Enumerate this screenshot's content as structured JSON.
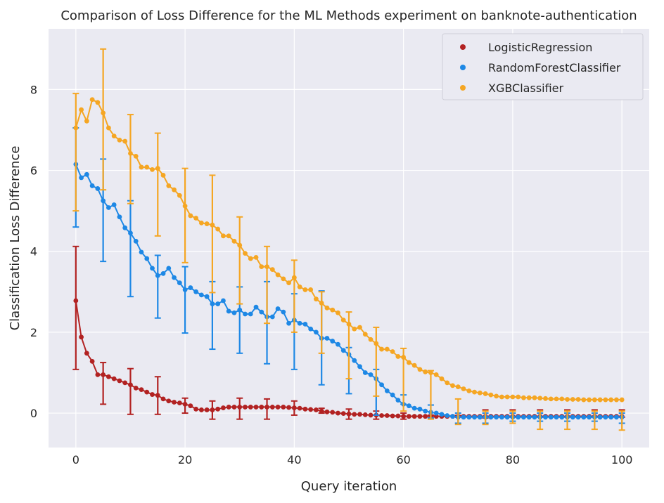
{
  "chart_data": {
    "type": "line",
    "title": "Comparison of Loss Difference for the ML Methods experiment on banknote-authentication",
    "xlabel": "Query iteration",
    "ylabel": "Classification Loss Difference",
    "xlim": [
      -5,
      105
    ],
    "ylim": [
      -0.85,
      9.5
    ],
    "xticks": [
      0,
      20,
      40,
      60,
      80,
      100
    ],
    "yticks": [
      0,
      2,
      4,
      6,
      8
    ],
    "grid": true,
    "legend_position": "top-right",
    "background": "#eaeaf2",
    "series": [
      {
        "name": "LogisticRegression",
        "color": "#b22222",
        "values": [
          2.78,
          1.88,
          1.48,
          1.28,
          0.95,
          0.95,
          0.9,
          0.85,
          0.8,
          0.75,
          0.7,
          0.62,
          0.58,
          0.52,
          0.46,
          0.44,
          0.35,
          0.3,
          0.27,
          0.25,
          0.22,
          0.18,
          0.1,
          0.08,
          0.08,
          0.08,
          0.1,
          0.13,
          0.15,
          0.15,
          0.15,
          0.15,
          0.15,
          0.15,
          0.15,
          0.15,
          0.15,
          0.15,
          0.15,
          0.14,
          0.13,
          0.12,
          0.1,
          0.09,
          0.08,
          0.05,
          0.03,
          0.02,
          0.0,
          -0.01,
          -0.02,
          -0.03,
          -0.03,
          -0.04,
          -0.05,
          -0.05,
          -0.06,
          -0.06,
          -0.07,
          -0.07,
          -0.08,
          -0.08,
          -0.08,
          -0.08,
          -0.08,
          -0.08,
          -0.08,
          -0.08,
          -0.08,
          -0.08,
          -0.08,
          -0.08,
          -0.08,
          -0.08,
          -0.08,
          -0.08,
          -0.08,
          -0.08,
          -0.08,
          -0.08,
          -0.08,
          -0.08,
          -0.08,
          -0.08,
          -0.08,
          -0.08,
          -0.08,
          -0.08,
          -0.08,
          -0.08,
          -0.08,
          -0.08,
          -0.08,
          -0.08,
          -0.08,
          -0.08,
          -0.08,
          -0.08,
          -0.08,
          -0.08,
          -0.08
        ],
        "errorbars": [
          {
            "x": 0,
            "y": 2.78,
            "low": 1.08,
            "high": 4.12
          },
          {
            "x": 5,
            "y": 0.95,
            "low": 0.22,
            "high": 1.25
          },
          {
            "x": 10,
            "y": 0.7,
            "low": -0.03,
            "high": 1.1
          },
          {
            "x": 15,
            "y": 0.44,
            "low": -0.03,
            "high": 0.9
          },
          {
            "x": 20,
            "y": 0.22,
            "low": 0.0,
            "high": 0.37
          },
          {
            "x": 25,
            "y": 0.08,
            "low": -0.15,
            "high": 0.3
          },
          {
            "x": 30,
            "y": 0.15,
            "low": -0.15,
            "high": 0.37
          },
          {
            "x": 35,
            "y": 0.15,
            "low": -0.15,
            "high": 0.35
          },
          {
            "x": 40,
            "y": 0.13,
            "low": -0.05,
            "high": 0.3
          },
          {
            "x": 45,
            "y": 0.05,
            "low": 0.0,
            "high": 0.12
          },
          {
            "x": 50,
            "y": -0.02,
            "low": -0.15,
            "high": 0.1
          },
          {
            "x": 55,
            "y": -0.05,
            "low": -0.15,
            "high": 0.05
          },
          {
            "x": 60,
            "y": -0.08,
            "low": -0.15,
            "high": 0.0
          },
          {
            "x": 65,
            "y": -0.08,
            "low": -0.12,
            "high": -0.05
          },
          {
            "x": 70,
            "y": -0.08,
            "low": -0.1,
            "high": -0.06
          },
          {
            "x": 75,
            "y": -0.08,
            "low": -0.12,
            "high": 0.08
          },
          {
            "x": 80,
            "y": -0.08,
            "low": -0.1,
            "high": 0.08
          },
          {
            "x": 85,
            "y": -0.08,
            "low": -0.1,
            "high": 0.08
          },
          {
            "x": 90,
            "y": -0.08,
            "low": -0.1,
            "high": 0.08
          },
          {
            "x": 95,
            "y": -0.08,
            "low": -0.1,
            "high": 0.08
          },
          {
            "x": 100,
            "y": -0.08,
            "low": -0.1,
            "high": 0.08
          }
        ]
      },
      {
        "name": "RandomForestClassifier",
        "color": "#1e88e5",
        "values": [
          6.15,
          5.82,
          5.9,
          5.62,
          5.55,
          5.25,
          5.08,
          5.15,
          4.85,
          4.58,
          4.45,
          4.25,
          3.98,
          3.82,
          3.58,
          3.4,
          3.45,
          3.58,
          3.35,
          3.22,
          3.05,
          3.1,
          3.0,
          2.92,
          2.88,
          2.7,
          2.7,
          2.78,
          2.52,
          2.48,
          2.55,
          2.45,
          2.45,
          2.62,
          2.5,
          2.38,
          2.38,
          2.58,
          2.5,
          2.22,
          2.3,
          2.22,
          2.2,
          2.08,
          2.0,
          1.85,
          1.85,
          1.78,
          1.7,
          1.55,
          1.45,
          1.3,
          1.15,
          1.0,
          0.95,
          0.85,
          0.7,
          0.55,
          0.45,
          0.32,
          0.22,
          0.18,
          0.12,
          0.1,
          0.05,
          0.02,
          0.0,
          -0.03,
          -0.06,
          -0.08,
          -0.1,
          -0.1,
          -0.1,
          -0.1,
          -0.1,
          -0.1,
          -0.1,
          -0.1,
          -0.1,
          -0.1,
          -0.1,
          -0.1,
          -0.1,
          -0.1,
          -0.1,
          -0.1,
          -0.1,
          -0.1,
          -0.1,
          -0.1,
          -0.1,
          -0.1,
          -0.1,
          -0.1,
          -0.1,
          -0.1,
          -0.1,
          -0.1,
          -0.1,
          -0.1,
          -0.1
        ],
        "errorbars": [
          {
            "x": 0,
            "y": 6.15,
            "low": 4.6,
            "high": 7.05
          },
          {
            "x": 5,
            "y": 5.25,
            "low": 3.75,
            "high": 6.28
          },
          {
            "x": 10,
            "y": 4.45,
            "low": 2.88,
            "high": 5.25
          },
          {
            "x": 15,
            "y": 3.4,
            "low": 2.35,
            "high": 3.9
          },
          {
            "x": 20,
            "y": 3.05,
            "low": 1.98,
            "high": 3.62
          },
          {
            "x": 25,
            "y": 2.7,
            "low": 1.58,
            "high": 3.25
          },
          {
            "x": 30,
            "y": 2.55,
            "low": 1.48,
            "high": 3.12
          },
          {
            "x": 35,
            "y": 2.38,
            "low": 1.22,
            "high": 3.25
          },
          {
            "x": 40,
            "y": 2.3,
            "low": 1.08,
            "high": 2.95
          },
          {
            "x": 45,
            "y": 1.85,
            "low": 0.7,
            "high": 3.02
          },
          {
            "x": 50,
            "y": 1.45,
            "low": 0.48,
            "high": 1.62
          },
          {
            "x": 55,
            "y": 0.85,
            "low": -0.05,
            "high": 1.08
          },
          {
            "x": 60,
            "y": 0.32,
            "low": 0.22,
            "high": 0.45
          },
          {
            "x": 65,
            "y": 0.05,
            "low": -0.12,
            "high": 0.2
          },
          {
            "x": 70,
            "y": -0.1,
            "low": -0.25,
            "high": 0.0
          },
          {
            "x": 75,
            "y": -0.1,
            "low": -0.25,
            "high": 0.0
          },
          {
            "x": 80,
            "y": -0.1,
            "low": -0.2,
            "high": 0.0
          },
          {
            "x": 85,
            "y": -0.1,
            "low": -0.2,
            "high": 0.0
          },
          {
            "x": 90,
            "y": -0.1,
            "low": -0.2,
            "high": 0.0
          },
          {
            "x": 95,
            "y": -0.1,
            "low": -0.2,
            "high": 0.0
          },
          {
            "x": 100,
            "y": -0.1,
            "low": -0.25,
            "high": 0.0
          }
        ]
      },
      {
        "name": "XGBClassifier",
        "color": "#f5a623",
        "values": [
          7.05,
          7.5,
          7.22,
          7.75,
          7.68,
          7.42,
          7.05,
          6.85,
          6.75,
          6.72,
          6.42,
          6.35,
          6.08,
          6.08,
          6.02,
          6.05,
          5.88,
          5.62,
          5.52,
          5.38,
          5.12,
          4.88,
          4.82,
          4.7,
          4.68,
          4.65,
          4.55,
          4.38,
          4.38,
          4.25,
          4.15,
          3.95,
          3.82,
          3.85,
          3.62,
          3.62,
          3.55,
          3.42,
          3.32,
          3.22,
          3.35,
          3.12,
          3.05,
          3.05,
          2.82,
          2.72,
          2.6,
          2.55,
          2.48,
          2.3,
          2.2,
          2.08,
          2.12,
          1.95,
          1.82,
          1.72,
          1.58,
          1.58,
          1.52,
          1.4,
          1.38,
          1.25,
          1.18,
          1.08,
          1.02,
          1.0,
          0.95,
          0.85,
          0.75,
          0.68,
          0.65,
          0.6,
          0.55,
          0.52,
          0.5,
          0.48,
          0.45,
          0.42,
          0.4,
          0.4,
          0.4,
          0.4,
          0.38,
          0.38,
          0.38,
          0.37,
          0.36,
          0.35,
          0.35,
          0.35,
          0.34,
          0.34,
          0.34,
          0.33,
          0.33,
          0.33,
          0.33,
          0.33,
          0.33,
          0.33,
          0.33
        ],
        "errorbars": [
          {
            "x": 0,
            "y": 7.05,
            "low": 5.0,
            "high": 7.9
          },
          {
            "x": 5,
            "y": 7.42,
            "low": 5.52,
            "high": 9.0
          },
          {
            "x": 10,
            "y": 6.42,
            "low": 5.18,
            "high": 7.38
          },
          {
            "x": 15,
            "y": 6.05,
            "low": 4.38,
            "high": 6.92
          },
          {
            "x": 20,
            "y": 5.12,
            "low": 3.72,
            "high": 6.05
          },
          {
            "x": 25,
            "y": 4.65,
            "low": 2.98,
            "high": 5.88
          },
          {
            "x": 30,
            "y": 4.15,
            "low": 2.7,
            "high": 4.85
          },
          {
            "x": 35,
            "y": 3.62,
            "low": 2.22,
            "high": 4.12
          },
          {
            "x": 40,
            "y": 3.35,
            "low": 2.0,
            "high": 3.78
          },
          {
            "x": 45,
            "y": 2.72,
            "low": 1.48,
            "high": 3.0
          },
          {
            "x": 50,
            "y": 2.2,
            "low": 0.85,
            "high": 2.5
          },
          {
            "x": 55,
            "y": 1.72,
            "low": 0.42,
            "high": 2.12
          },
          {
            "x": 60,
            "y": 1.38,
            "low": 0.05,
            "high": 1.6
          },
          {
            "x": 65,
            "y": 1.0,
            "low": -0.15,
            "high": 1.05
          },
          {
            "x": 70,
            "y": 0.65,
            "low": -0.28,
            "high": 0.35
          },
          {
            "x": 75,
            "y": 0.48,
            "low": -0.28,
            "high": 0.05
          },
          {
            "x": 80,
            "y": 0.4,
            "low": -0.25,
            "high": 0.05
          },
          {
            "x": 85,
            "y": 0.38,
            "low": -0.4,
            "high": 0.05
          },
          {
            "x": 90,
            "y": 0.35,
            "low": -0.4,
            "high": 0.05
          },
          {
            "x": 95,
            "y": 0.33,
            "low": -0.4,
            "high": 0.05
          },
          {
            "x": 100,
            "y": 0.33,
            "low": -0.42,
            "high": 0.05
          }
        ]
      }
    ]
  }
}
